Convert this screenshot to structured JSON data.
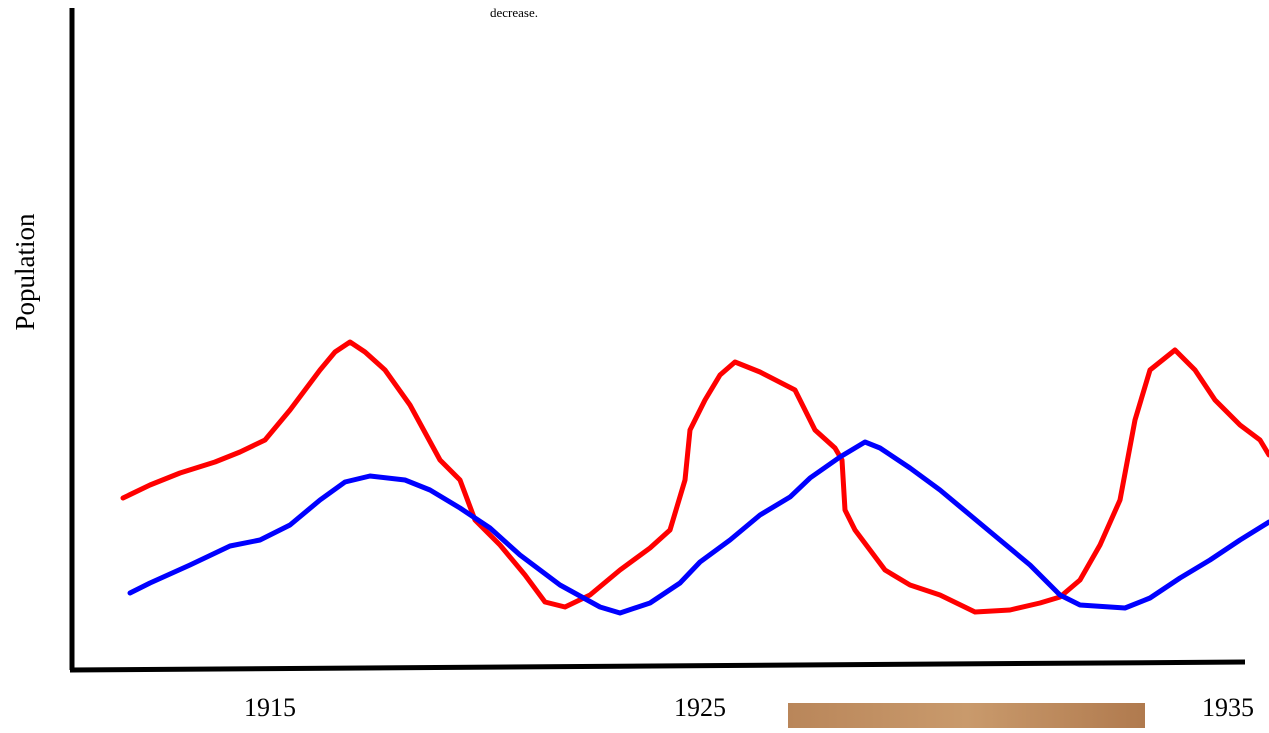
{
  "caption_fragment": "decrease.",
  "axis": {
    "y_label": "Population",
    "x_labels": [
      "1915",
      "1925",
      "1935"
    ]
  }
}
